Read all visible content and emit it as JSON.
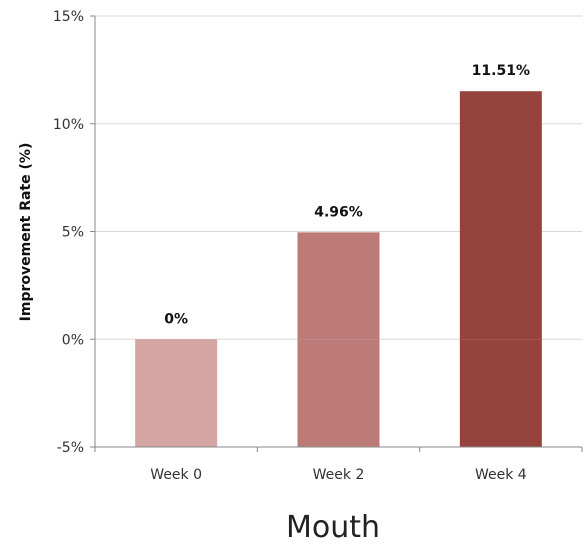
{
  "chart_data": {
    "type": "bar",
    "title": "Mouth",
    "xlabel": "",
    "ylabel": "Improvement Rate (%)",
    "categories": [
      "Week 0",
      "Week 2",
      "Week 4"
    ],
    "values": [
      0,
      4.96,
      11.51
    ],
    "data_labels": [
      "0%",
      "4.96%",
      "11.51%"
    ],
    "bar_colors": [
      "#d4a5a3",
      "#bd7b78",
      "#96433e"
    ],
    "ylim": [
      -5,
      15
    ],
    "yticks": [
      -5,
      0,
      5,
      10,
      15
    ],
    "ytick_labels": [
      "-5%",
      "0%",
      "5%",
      "10%",
      "15%"
    ],
    "grid": true,
    "colors": {
      "grid": "#d9d9d9",
      "axis": "#888888"
    }
  }
}
